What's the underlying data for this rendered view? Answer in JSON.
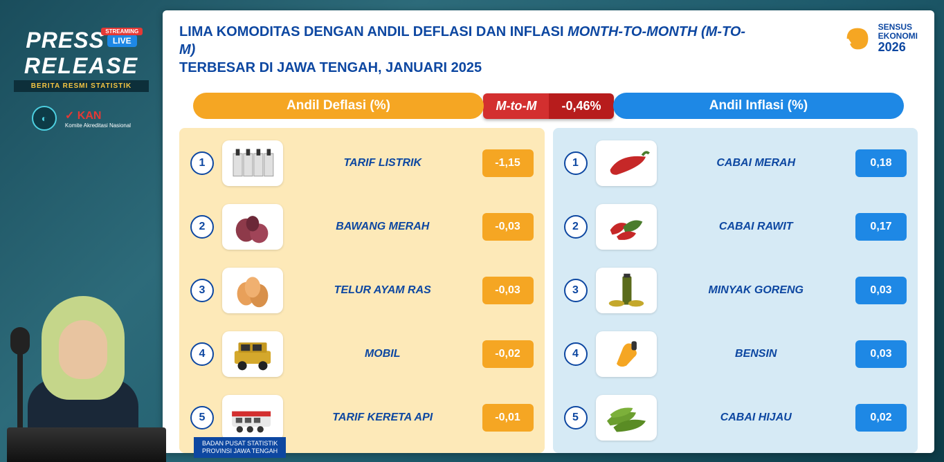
{
  "sidebar": {
    "press": "PRESS",
    "live": "LIVE",
    "streaming": "STREAMING",
    "release": "RELEASE",
    "subtitle": "BERITA RESMI STATISTIK",
    "kan_top": "✓ KAN",
    "kan_sub": "Komite Akreditasi Nasional"
  },
  "header": {
    "title_line1": "LIMA KOMODITAS DENGAN ANDIL DEFLASI DAN INFLASI ",
    "title_mtom": "MONTH-TO-MONTH (M-TO-M)",
    "title_line2": "TERBESAR DI JAWA TENGAH, JANUARI 2025",
    "sensus_l1": "SENSUS",
    "sensus_l2": "EKONOMI",
    "sensus_year": "2026"
  },
  "pills": {
    "deflasi": "Andil Deflasi (%)",
    "inflasi": "Andil Inflasi (%)",
    "mtom_label": "M-to-M",
    "mtom_value": "-0,46%"
  },
  "deflasi": [
    {
      "rank": "1",
      "name": "TARIF LISTRIK",
      "value": "-1,15",
      "icon": "listrik"
    },
    {
      "rank": "2",
      "name": "BAWANG MERAH",
      "value": "-0,03",
      "icon": "bawang"
    },
    {
      "rank": "3",
      "name": "TELUR AYAM RAS",
      "value": "-0,03",
      "icon": "telur"
    },
    {
      "rank": "4",
      "name": "MOBIL",
      "value": "-0,02",
      "icon": "mobil"
    },
    {
      "rank": "5",
      "name": "TARIF KERETA API",
      "value": "-0,01",
      "icon": "kereta"
    }
  ],
  "inflasi": [
    {
      "rank": "1",
      "name": "CABAI MERAH",
      "value": "0,18",
      "icon": "cabai-merah"
    },
    {
      "rank": "2",
      "name": "CABAI RAWIT",
      "value": "0,17",
      "icon": "cabai-rawit"
    },
    {
      "rank": "3",
      "name": "MINYAK GORENG",
      "value": "0,03",
      "icon": "minyak"
    },
    {
      "rank": "4",
      "name": "BENSIN",
      "value": "0,03",
      "icon": "bensin"
    },
    {
      "rank": "5",
      "name": "CABAI HIJAU",
      "value": "0,02",
      "icon": "cabai-hijau"
    }
  ],
  "footer": {
    "line1": "BADAN PUSAT STATISTIK",
    "line2": "PROVINSI JAWA TENGAH"
  },
  "colors": {
    "deflasi_pill": "#f5a623",
    "inflasi_pill": "#1e88e5",
    "mtom_left": "#d32f2f",
    "mtom_right": "#b71c1c",
    "title": "#0d47a1",
    "deflasi_bg": "#fde9b8",
    "inflasi_bg": "#d6eaf5"
  }
}
